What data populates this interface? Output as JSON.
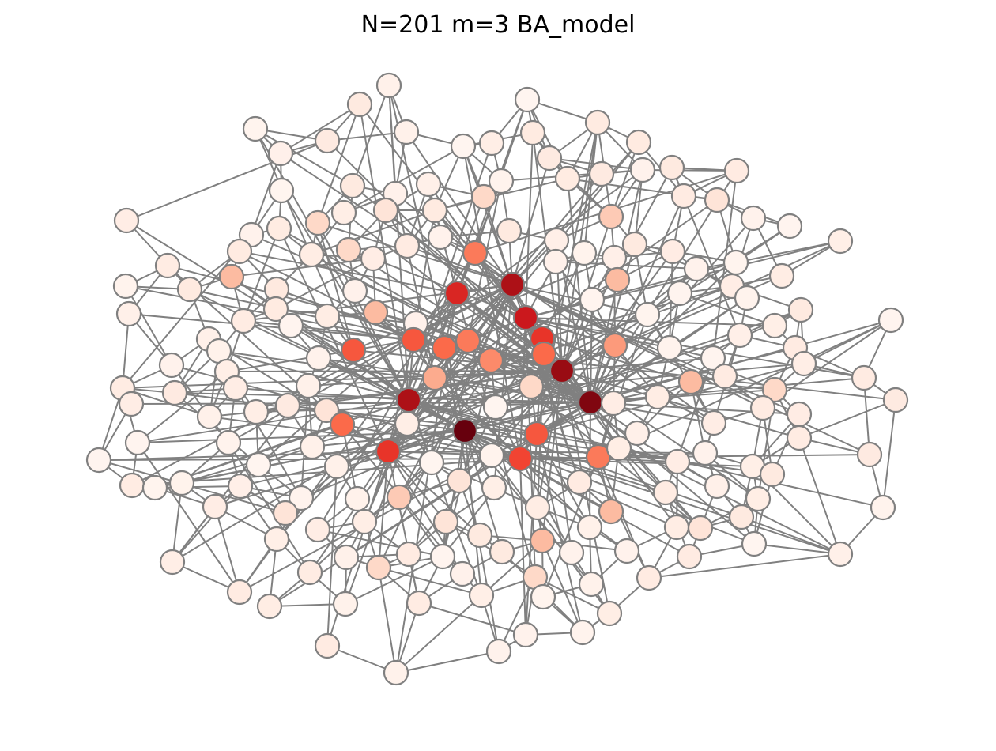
{
  "title": "N=201 m=3 BA_model",
  "graph": {
    "layout": "force-directed network",
    "node_count": 201,
    "edges_per_new_node": 3,
    "colormap": "Reds",
    "node_outline_color": "#808080",
    "edge_color": "#808080",
    "hub_color": "#67000d",
    "leaf_color": "#fff5f0"
  }
}
